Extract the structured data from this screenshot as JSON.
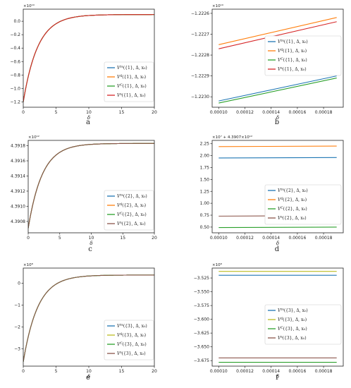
{
  "chart_data": [
    {
      "panel": "a",
      "type": "line",
      "multiplier": "×10¹⁰",
      "xlabel": "δ",
      "xlim": [
        0,
        20
      ],
      "xticks": [
        0,
        5,
        10,
        15,
        20
      ],
      "ylim": [
        -1.28,
        0.18
      ],
      "yticks": [
        -1.2,
        -1.0,
        -0.8,
        -0.6,
        -0.4,
        -0.2,
        0.0
      ],
      "ytick_labels": [
        "−1.2",
        "−1.0",
        "−0.8",
        "−0.6",
        "−0.4",
        "−0.2",
        "0.0"
      ],
      "legend": "lower-right",
      "series": [
        {
          "name": "V^{rs}({1}, Δ, x₀)",
          "color": "#1f77b4"
        },
        {
          "name": "V^{d}({1}, Δ, x₀)",
          "color": "#ff7f0e"
        },
        {
          "name": "V^{C}({1}, Δ, x₀)",
          "color": "#2ca02c"
        },
        {
          "name": "V^{s}({1}, Δ, x₀)",
          "color": "#d62728"
        }
      ],
      "curve": {
        "start": -1.2,
        "end": 0.1,
        "rate": 0.45
      }
    },
    {
      "panel": "b",
      "type": "line",
      "multiplier": "×10¹⁰",
      "xlabel": "δ",
      "xlim": [
        9.5e-05,
        0.000195
      ],
      "xticks": [
        0.0001,
        0.00012,
        0.00014,
        0.00016,
        0.00018
      ],
      "xtick_labels": [
        "0.00010",
        "0.00012",
        "0.00014",
        "0.00016",
        "0.00018"
      ],
      "ylim": [
        -1.22305,
        -1.22258
      ],
      "yticks": [
        -1.223,
        -1.2229,
        -1.2228,
        -1.2227,
        -1.2226
      ],
      "ytick_labels": [
        "−1.2230",
        "−1.2229",
        "−1.2228",
        "−1.2227",
        "−1.2226"
      ],
      "legend": "center-right",
      "series": [
        {
          "name": "V^{rs}({1}, Δ, x₀)",
          "color": "#1f77b4",
          "x": [
            0.0001,
            0.00019
          ],
          "y": [
            -1.22302,
            -1.2229
          ]
        },
        {
          "name": "V^{d}({1}, Δ, x₀)",
          "color": "#ff7f0e",
          "x": [
            0.0001,
            0.00019
          ],
          "y": [
            -1.22275,
            -1.22262
          ]
        },
        {
          "name": "V^{C}({1}, Δ, x₀)",
          "color": "#2ca02c",
          "x": [
            0.0001,
            0.00019
          ],
          "y": [
            -1.22303,
            -1.22291
          ]
        },
        {
          "name": "V^{s}({1}, Δ, x₀)",
          "color": "#d62728",
          "x": [
            0.0001,
            0.00019
          ],
          "y": [
            -1.22277,
            -1.22264
          ]
        }
      ]
    },
    {
      "panel": "c",
      "type": "line",
      "multiplier": "×10¹²",
      "xlabel": "δ",
      "xlim": [
        0,
        20
      ],
      "xticks": [
        0,
        5,
        10,
        15,
        20
      ],
      "ylim": [
        4.39065,
        4.39187
      ],
      "yticks": [
        4.3908,
        4.391,
        4.3912,
        4.3914,
        4.3916,
        4.3918
      ],
      "ytick_labels": [
        "4.3908",
        "4.3910",
        "4.3912",
        "4.3914",
        "4.3916",
        "4.3918"
      ],
      "legend": "lower-right",
      "series": [
        {
          "name": "V^{rs}({2}, Δ, x₀)",
          "color": "#1f77b4"
        },
        {
          "name": "V^{d}({2}, Δ, x₀)",
          "color": "#ff7f0e"
        },
        {
          "name": "V^{C}({2}, Δ, x₀)",
          "color": "#2ca02c"
        },
        {
          "name": "V^{s}({2}, Δ, x₀)",
          "color": "#8c564b"
        }
      ],
      "curve": {
        "start": 4.39071,
        "end": 4.39183,
        "rate": 0.45
      }
    },
    {
      "panel": "d",
      "type": "line",
      "multiplier": "×10⁷ + 4.3907×10¹²",
      "xlabel": "δ",
      "xlim": [
        9.5e-05,
        0.000195
      ],
      "xticks": [
        0.0001,
        0.00012,
        0.00014,
        0.00016,
        0.00018
      ],
      "xtick_labels": [
        "0.00010",
        "0.00012",
        "0.00014",
        "0.00016",
        "0.00018"
      ],
      "ylim": [
        0.38,
        2.32
      ],
      "yticks": [
        0.5,
        0.75,
        1.0,
        1.25,
        1.5,
        1.75,
        2.0,
        2.25
      ],
      "ytick_labels": [
        "0.50",
        "0.75",
        "1.00",
        "1.25",
        "1.50",
        "1.75",
        "2.00",
        "2.25"
      ],
      "legend": "center-right",
      "series": [
        {
          "name": "V^{rs}({2}, Δ, x₀)",
          "color": "#1f77b4",
          "x": [
            0.0001,
            0.00019
          ],
          "y": [
            1.95,
            1.96
          ]
        },
        {
          "name": "V^{d}({2}, Δ, x₀)",
          "color": "#ff7f0e",
          "x": [
            0.0001,
            0.00019
          ],
          "y": [
            2.19,
            2.2
          ]
        },
        {
          "name": "V^{C}({2}, Δ, x₀)",
          "color": "#2ca02c",
          "x": [
            0.0001,
            0.00019
          ],
          "y": [
            0.49,
            0.5
          ]
        },
        {
          "name": "V^{s}({2}, Δ, x₀)",
          "color": "#8c564b",
          "x": [
            0.0001,
            0.00019
          ],
          "y": [
            0.73,
            0.74
          ]
        }
      ]
    },
    {
      "panel": "e",
      "type": "line",
      "multiplier": "×10⁸",
      "xlabel": "δ",
      "xlim": [
        0,
        20
      ],
      "xticks": [
        0,
        5,
        10,
        15,
        20
      ],
      "ylim": [
        -3.8,
        0.7
      ],
      "yticks": [
        -3,
        -2,
        -1,
        0
      ],
      "ytick_labels": [
        "−3",
        "−2",
        "−1",
        "0"
      ],
      "legend": "lower-right",
      "series": [
        {
          "name": "V^{rs}({3}, Δ, x₀)",
          "color": "#1f77b4"
        },
        {
          "name": "V^{d}({3}, Δ, x₀)",
          "color": "#bcbd22"
        },
        {
          "name": "V^{C}({3}, Δ, x₀)",
          "color": "#2ca02c"
        },
        {
          "name": "V^{s}({3}, Δ, x₀)",
          "color": "#8c564b"
        }
      ],
      "curve": {
        "start": -3.6,
        "end": 0.38,
        "rate": 0.45
      }
    },
    {
      "panel": "f",
      "type": "line",
      "multiplier": "×10⁸",
      "xlabel": "δ",
      "xlim": [
        9.5e-05,
        0.000195
      ],
      "xticks": [
        0.0001,
        0.00012,
        0.00014,
        0.00016,
        0.00018
      ],
      "xtick_labels": [
        "0.00010",
        "0.00012",
        "0.00014",
        "0.00016",
        "0.00018"
      ],
      "ylim": [
        -3.685,
        -3.507
      ],
      "yticks": [
        -3.525,
        -3.55,
        -3.575,
        -3.6,
        -3.625,
        -3.65,
        -3.675
      ],
      "ytick_labels": [
        "−3.525",
        "−3.550",
        "−3.575",
        "−3.600",
        "−3.625",
        "−3.650",
        "−3.675"
      ],
      "legend": "center-right",
      "series": [
        {
          "name": "V^{rs}({3}, Δ, x₀)",
          "color": "#1f77b4",
          "x": [
            0.0001,
            0.00019
          ],
          "y": [
            -3.52,
            -3.52
          ]
        },
        {
          "name": "V^{d}({3}, Δ, x₀)",
          "color": "#bcbd22",
          "x": [
            0.0001,
            0.00019
          ],
          "y": [
            -3.513,
            -3.513
          ]
        },
        {
          "name": "V^{C}({3}, Δ, x₀)",
          "color": "#2ca02c",
          "x": [
            0.0001,
            0.00019
          ],
          "y": [
            -3.678,
            -3.678
          ]
        },
        {
          "name": "V^{s}({3}, Δ, x₀)",
          "color": "#8c564b",
          "x": [
            0.0001,
            0.00019
          ],
          "y": [
            -3.67,
            -3.67
          ]
        }
      ]
    }
  ]
}
